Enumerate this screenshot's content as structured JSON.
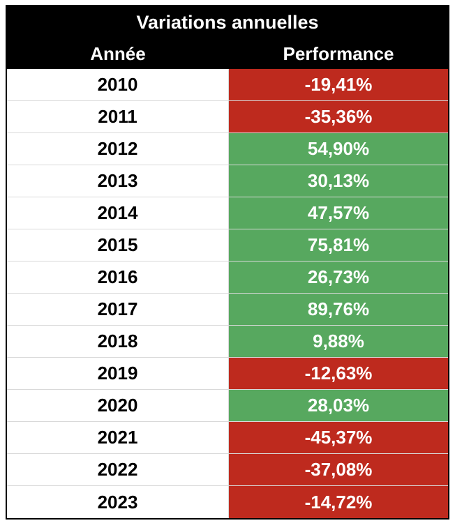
{
  "table": {
    "title": "Variations annuelles",
    "headers": {
      "year": "Année",
      "performance": "Performance"
    },
    "colors": {
      "negative": "#be2a1e",
      "positive": "#57a85f"
    },
    "rows": [
      {
        "year": "2010",
        "performance": "-19,41%",
        "value": -19.41
      },
      {
        "year": "2011",
        "performance": "-35,36%",
        "value": -35.36
      },
      {
        "year": "2012",
        "performance": "54,90%",
        "value": 54.9
      },
      {
        "year": "2013",
        "performance": "30,13%",
        "value": 30.13
      },
      {
        "year": "2014",
        "performance": "47,57%",
        "value": 47.57
      },
      {
        "year": "2015",
        "performance": "75,81%",
        "value": 75.81
      },
      {
        "year": "2016",
        "performance": "26,73%",
        "value": 26.73
      },
      {
        "year": "2017",
        "performance": "89,76%",
        "value": 89.76
      },
      {
        "year": "2018",
        "performance": "9,88%",
        "value": 9.88
      },
      {
        "year": "2019",
        "performance": "-12,63%",
        "value": -12.63
      },
      {
        "year": "2020",
        "performance": "28,03%",
        "value": 28.03
      },
      {
        "year": "2021",
        "performance": "-45,37%",
        "value": -45.37
      },
      {
        "year": "2022",
        "performance": "-37,08%",
        "value": -37.08
      },
      {
        "year": "2023",
        "performance": "-14,72%",
        "value": -14.72
      }
    ]
  }
}
